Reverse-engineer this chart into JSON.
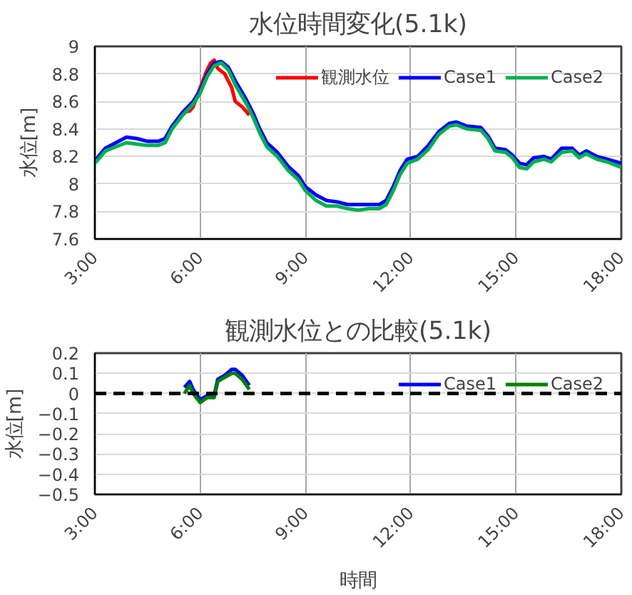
{
  "chart_data": [
    {
      "type": "line",
      "title": "水位時間変化(5.1k)",
      "ylabel": "水位[m]",
      "xlim": [
        3,
        18
      ],
      "xticks": [
        {
          "value": 3,
          "label": "3:00"
        },
        {
          "value": 6,
          "label": "6:00"
        },
        {
          "value": 9,
          "label": "9:00"
        },
        {
          "value": 12,
          "label": "12:00"
        },
        {
          "value": 15,
          "label": "15:00"
        },
        {
          "value": 18,
          "label": "18:00"
        }
      ],
      "ylim": [
        7.6,
        9
      ],
      "yticks": [
        7.6,
        7.8,
        8,
        8.2,
        8.4,
        8.6,
        8.8,
        9
      ],
      "grid": true,
      "legend": "top right",
      "series": [
        {
          "name": "観測水位",
          "color": "#ff0000",
          "x": [
            5.5,
            5.7,
            5.8,
            6.0,
            6.2,
            6.3,
            6.4,
            6.5,
            6.7,
            6.9,
            7.0,
            7.2,
            7.4
          ],
          "values": [
            8.52,
            8.53,
            8.56,
            8.7,
            8.83,
            8.88,
            8.9,
            8.84,
            8.8,
            8.7,
            8.6,
            8.56,
            8.5
          ]
        },
        {
          "name": "Case1",
          "color": "#0000ff",
          "x": [
            3.0,
            3.3,
            3.6,
            3.9,
            4.2,
            4.5,
            4.8,
            5.0,
            5.2,
            5.5,
            5.8,
            6.0,
            6.2,
            6.4,
            6.6,
            6.8,
            7.0,
            7.3,
            7.5,
            7.7,
            7.9,
            8.2,
            8.5,
            8.8,
            9.0,
            9.3,
            9.6,
            9.9,
            10.2,
            10.5,
            10.8,
            11.1,
            11.3,
            11.5,
            11.7,
            11.9,
            12.2,
            12.5,
            12.8,
            13.1,
            13.3,
            13.6,
            14.0,
            14.2,
            14.4,
            14.7,
            14.9,
            15.1,
            15.3,
            15.5,
            15.8,
            16.0,
            16.3,
            16.6,
            16.8,
            17.0,
            17.3,
            17.6,
            18.0
          ],
          "values": [
            8.17,
            8.26,
            8.3,
            8.34,
            8.33,
            8.31,
            8.31,
            8.33,
            8.42,
            8.52,
            8.6,
            8.68,
            8.8,
            8.88,
            8.89,
            8.85,
            8.75,
            8.62,
            8.52,
            8.4,
            8.3,
            8.23,
            8.13,
            8.06,
            7.98,
            7.92,
            7.88,
            7.87,
            7.85,
            7.85,
            7.85,
            7.85,
            7.88,
            7.98,
            8.1,
            8.18,
            8.2,
            8.28,
            8.38,
            8.44,
            8.45,
            8.42,
            8.41,
            8.35,
            8.26,
            8.25,
            8.21,
            8.15,
            8.14,
            8.19,
            8.2,
            8.18,
            8.26,
            8.26,
            8.21,
            8.24,
            8.2,
            8.18,
            8.15
          ]
        },
        {
          "name": "Case2",
          "color": "#00b050",
          "x": [
            3.0,
            3.3,
            3.6,
            3.9,
            4.2,
            4.5,
            4.8,
            5.0,
            5.2,
            5.5,
            5.8,
            6.0,
            6.2,
            6.4,
            6.6,
            6.8,
            7.0,
            7.3,
            7.5,
            7.7,
            7.9,
            8.2,
            8.5,
            8.8,
            9.0,
            9.3,
            9.6,
            9.9,
            10.2,
            10.5,
            10.8,
            11.1,
            11.3,
            11.5,
            11.7,
            11.9,
            12.2,
            12.5,
            12.8,
            13.1,
            13.3,
            13.6,
            14.0,
            14.2,
            14.4,
            14.7,
            14.9,
            15.1,
            15.3,
            15.5,
            15.8,
            16.0,
            16.3,
            16.6,
            16.8,
            17.0,
            17.3,
            17.6,
            18.0
          ],
          "values": [
            8.15,
            8.24,
            8.27,
            8.3,
            8.29,
            8.28,
            8.28,
            8.3,
            8.4,
            8.5,
            8.58,
            8.66,
            8.78,
            8.86,
            8.88,
            8.83,
            8.72,
            8.59,
            8.49,
            8.37,
            8.27,
            8.2,
            8.1,
            8.03,
            7.95,
            7.88,
            7.84,
            7.84,
            7.82,
            7.81,
            7.82,
            7.82,
            7.85,
            7.95,
            8.07,
            8.15,
            8.18,
            8.25,
            8.36,
            8.42,
            8.43,
            8.4,
            8.39,
            8.33,
            8.24,
            8.23,
            8.19,
            8.12,
            8.11,
            8.16,
            8.18,
            8.16,
            8.23,
            8.24,
            8.19,
            8.22,
            8.18,
            8.16,
            8.12
          ]
        }
      ]
    },
    {
      "type": "line",
      "title": "観測水位との比較(5.1k)",
      "ylabel": "水位[m]",
      "xlabel": "時間",
      "xlim": [
        3,
        18
      ],
      "xticks": [
        {
          "value": 3,
          "label": "3:00"
        },
        {
          "value": 6,
          "label": "6:00"
        },
        {
          "value": 9,
          "label": "9:00"
        },
        {
          "value": 12,
          "label": "12:00"
        },
        {
          "value": 15,
          "label": "15:00"
        },
        {
          "value": 18,
          "label": "18:00"
        }
      ],
      "ylim": [
        -0.5,
        0.2
      ],
      "yticks": [
        {
          "value": -0.5,
          "label": "−0.5"
        },
        {
          "value": -0.4,
          "label": "−0.4"
        },
        {
          "value": -0.3,
          "label": "−0.3"
        },
        {
          "value": -0.2,
          "label": "−0.2"
        },
        {
          "value": -0.1,
          "label": "−0.1"
        },
        0,
        0.1,
        0.2
      ],
      "grid": true,
      "legend": "top right",
      "ref_lines": [
        {
          "axis": "y",
          "value": 0,
          "color": "#000000",
          "line_style": "dashed"
        }
      ],
      "series": [
        {
          "name": "Case1",
          "color": "#0000ff",
          "x": [
            5.55,
            5.7,
            5.8,
            6.0,
            6.2,
            6.4,
            6.5,
            6.7,
            6.9,
            7.0,
            7.2,
            7.4
          ],
          "values": [
            0.03,
            0.06,
            0.02,
            -0.03,
            -0.01,
            -0.01,
            0.07,
            0.09,
            0.12,
            0.12,
            0.09,
            0.04
          ]
        },
        {
          "name": "Case2",
          "color": "#008000",
          "x": [
            5.55,
            5.7,
            5.8,
            6.0,
            6.2,
            6.4,
            6.5,
            6.7,
            6.9,
            7.0,
            7.2,
            7.4
          ],
          "values": [
            0.0,
            0.04,
            0.0,
            -0.045,
            -0.02,
            -0.02,
            0.06,
            0.08,
            0.1,
            0.1,
            0.07,
            0.02
          ]
        }
      ]
    }
  ]
}
